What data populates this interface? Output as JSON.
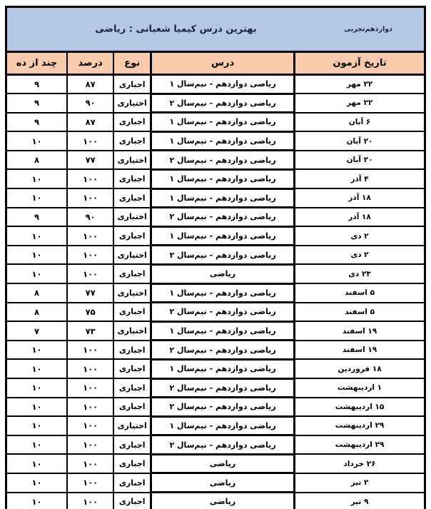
{
  "banner": {
    "grade_label": "دوازدهم‌تجربی",
    "title": "بهترین درس کیمیا شعبانی : ریاضی",
    "bg_color": "#b5c7e7"
  },
  "table": {
    "header_bg_color": "#f8cbad",
    "row_bg_color": "#ffffff",
    "border_color": "#000000",
    "columns": [
      {
        "key": "date",
        "label": "تاریخ آزمون"
      },
      {
        "key": "lesson",
        "label": "درس"
      },
      {
        "key": "type",
        "label": "نوع"
      },
      {
        "key": "percent",
        "label": "درصد"
      },
      {
        "key": "out_of_ten",
        "label": "چند از ده"
      }
    ],
    "rows": [
      {
        "date": "۲۲ مهر",
        "lesson": "ریاضی دوازدهم - نیم‌سال ۱",
        "type": "اجباری",
        "percent": "۸۷",
        "out_of_ten": "۹"
      },
      {
        "date": "۲۲ مهر",
        "lesson": "ریاضی دوازدهم - نیم‌سال ۲",
        "type": "اختیاری",
        "percent": "۹۰",
        "out_of_ten": "۹"
      },
      {
        "date": "۶ آبان",
        "lesson": "ریاضی دوازدهم - نیم‌سال ۱",
        "type": "اجباری",
        "percent": "۸۷",
        "out_of_ten": "۹"
      },
      {
        "date": "۲۰ آبان",
        "lesson": "ریاضی دوازدهم - نیم‌سال ۱",
        "type": "اجباری",
        "percent": "۱۰۰",
        "out_of_ten": "۱۰"
      },
      {
        "date": "۲۰ آبان",
        "lesson": "ریاضی دوازدهم - نیم‌سال ۲",
        "type": "اختیاری",
        "percent": "۷۷",
        "out_of_ten": "۸"
      },
      {
        "date": "۴ آذر",
        "lesson": "ریاضی دوازدهم - نیم‌سال ۱",
        "type": "اجباری",
        "percent": "۱۰۰",
        "out_of_ten": "۱۰"
      },
      {
        "date": "۱۸ آذر",
        "lesson": "ریاضی دوازدهم - نیم‌سال ۱",
        "type": "اجباری",
        "percent": "۱۰۰",
        "out_of_ten": "۱۰"
      },
      {
        "date": "۱۸ آذر",
        "lesson": "ریاضی دوازدهم - نیم‌سال ۲",
        "type": "اختیاری",
        "percent": "۹۰",
        "out_of_ten": "۹"
      },
      {
        "date": "۲ دی",
        "lesson": "ریاضی دوازدهم - نیم‌سال ۱",
        "type": "اجباری",
        "percent": "۱۰۰",
        "out_of_ten": "۱۰"
      },
      {
        "date": "۲ دی",
        "lesson": "ریاضی دوازدهم - نیم‌سال ۲",
        "type": "اختیاری",
        "percent": "۱۰۰",
        "out_of_ten": "۱۰"
      },
      {
        "date": "۲۳ دی",
        "lesson": "ریاضی",
        "type": "اجباری",
        "percent": "۱۰۰",
        "out_of_ten": "۱۰"
      },
      {
        "date": "۵ اسفند",
        "lesson": "ریاضی دوازدهم - نیم‌سال ۱",
        "type": "اختیاری",
        "percent": "۷۷",
        "out_of_ten": "۸"
      },
      {
        "date": "۵ اسفند",
        "lesson": "ریاضی دوازدهم - نیم‌سال ۲",
        "type": "اجباری",
        "percent": "۷۵",
        "out_of_ten": "۸"
      },
      {
        "date": "۱۹ اسفند",
        "lesson": "ریاضی دوازدهم - نیم‌سال ۱",
        "type": "اختیاری",
        "percent": "۷۳",
        "out_of_ten": "۷"
      },
      {
        "date": "۱۹ اسفند",
        "lesson": "ریاضی دوازدهم - نیم‌سال ۲",
        "type": "اجباری",
        "percent": "۱۰۰",
        "out_of_ten": "۱۰"
      },
      {
        "date": "۱۸ فروردین",
        "lesson": "ریاضی دوازدهم - نیم‌سال ۱",
        "type": "اجباری",
        "percent": "۱۰۰",
        "out_of_ten": "۱۰"
      },
      {
        "date": "۱ اردیبهشت",
        "lesson": "ریاضی دوازدهم - نیم‌سال ۲",
        "type": "اجباری",
        "percent": "۱۰۰",
        "out_of_ten": "۱۰"
      },
      {
        "date": "۱۵ اردیبهشت",
        "lesson": "ریاضی دوازدهم - نیم‌سال ۲",
        "type": "اجباری",
        "percent": "۱۰۰",
        "out_of_ten": "۱۰"
      },
      {
        "date": "۲۹ اردیبهشت",
        "lesson": "ریاضی دوازدهم - نیم‌سال ۱",
        "type": "اختیاری",
        "percent": "۱۰۰",
        "out_of_ten": "۱۰"
      },
      {
        "date": "۲۹ اردیبهشت",
        "lesson": "ریاضی دوازدهم - نیم‌سال ۲",
        "type": "اجباری",
        "percent": "۱۰۰",
        "out_of_ten": "۱۰"
      },
      {
        "date": "۲۶ خرداد",
        "lesson": "ریاضی",
        "type": "اجباری",
        "percent": "۱۰۰",
        "out_of_ten": "۱۰"
      },
      {
        "date": "۲ تیر",
        "lesson": "ریاضی",
        "type": "اجباری",
        "percent": "۱۰۰",
        "out_of_ten": "۱۰"
      },
      {
        "date": "۹ تیر",
        "lesson": "ریاضی",
        "type": "اجباری",
        "percent": "۱۰۰",
        "out_of_ten": "۱۰"
      }
    ]
  }
}
